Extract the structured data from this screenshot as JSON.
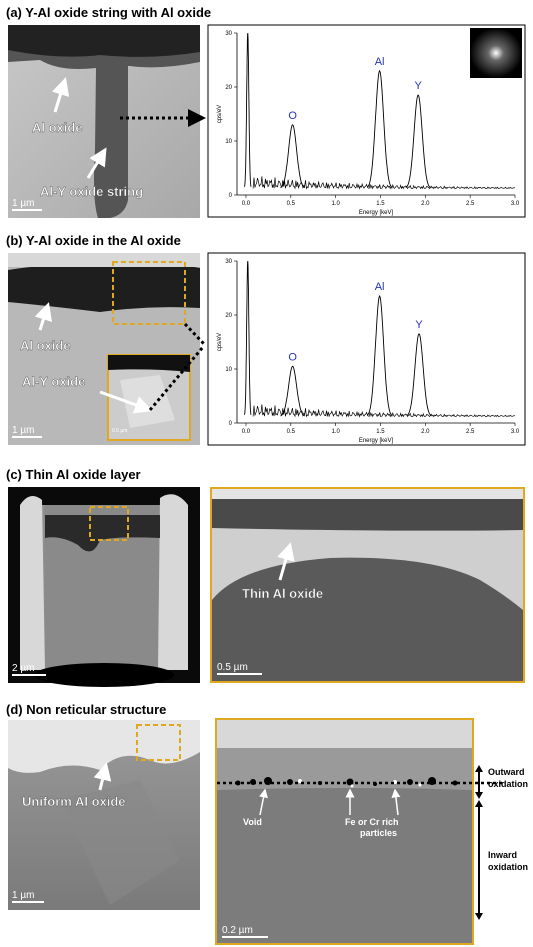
{
  "panels": [
    {
      "title": "(a) Y-Al oxide string with Al oxide",
      "image_labels": [
        "Al oxide",
        "Al-Y oxide string"
      ],
      "scale_bar": "1 µm",
      "spectrum": {
        "xlabel": "Energy [keV]",
        "ylabel": "cps/eV",
        "xlim": [
          -0.1,
          3.0
        ],
        "ylim": [
          0,
          30
        ],
        "xticks": [
          {
            "value": 0,
            "label": "0.0"
          },
          0.5,
          {
            "value": 1,
            "label": "1.0"
          },
          1.5,
          {
            "value": 2,
            "label": "2.0"
          },
          2.5,
          {
            "value": 3,
            "label": "3.0"
          }
        ],
        "yticks": [
          0,
          10,
          20,
          30
        ],
        "peaks": [
          {
            "x": 0.02,
            "y": 30
          },
          {
            "label": "O",
            "x": 0.52,
            "y": 13
          },
          {
            "label": "Al",
            "x": 1.49,
            "y": 23
          },
          {
            "label": "Y",
            "x": 1.92,
            "y": 18.5
          }
        ]
      }
    },
    {
      "title": "(b) Y-Al oxide in the Al oxide",
      "image_labels": [
        "Al oxide",
        "Al-Y oxide"
      ],
      "scale_bar": "1 µm",
      "inset_scale_bar": "0.5 µm",
      "spectrum": {
        "xlabel": "Energy [keV]",
        "ylabel": "cps/eV",
        "xlim": [
          -0.1,
          3.0
        ],
        "ylim": [
          0,
          30
        ],
        "xticks": [
          {
            "value": 0,
            "label": "0.0"
          },
          0.5,
          {
            "value": 1,
            "label": "1.0"
          },
          1.5,
          {
            "value": 2,
            "label": "2.0"
          },
          2.5,
          {
            "value": 3,
            "label": "3.0"
          }
        ],
        "yticks": [
          0,
          10,
          20,
          30
        ],
        "peaks": [
          {
            "x": 0.02,
            "y": 30
          },
          {
            "label": "O",
            "x": 0.52,
            "y": 10.5
          },
          {
            "label": "Al",
            "x": 1.49,
            "y": 23.5
          },
          {
            "label": "Y",
            "x": 1.93,
            "y": 16.5
          }
        ]
      }
    },
    {
      "title": "(c) Thin Al oxide layer",
      "scale_bar": "2 µm",
      "zoom": {
        "label": "Thin Al oxide",
        "scale_bar": "0.5 µm"
      }
    },
    {
      "title": "(d) Non reticular structure",
      "image_labels": [
        "Uniform Al oxide"
      ],
      "scale_bar": "1 µm",
      "zoom": {
        "scale_bar": "0.2 µm",
        "labels": [
          "Void",
          "Fe or Cr rich",
          "particles"
        ],
        "outward": [
          "Outward",
          "oxidation"
        ],
        "inward": [
          "Inward",
          "oxidation"
        ]
      }
    }
  ]
}
